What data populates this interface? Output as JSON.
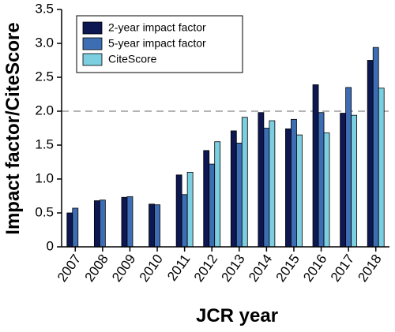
{
  "chart_data": {
    "type": "bar",
    "x_label": "JCR year",
    "y_label": "Impact factor/CiteScore",
    "categories": [
      "2007",
      "2008",
      "2009",
      "2010",
      "2011",
      "2012",
      "2013",
      "2014",
      "2015",
      "2016",
      "2017",
      "2018"
    ],
    "series": [
      {
        "name": "2-year impact factor",
        "color": "#0d1752",
        "values": [
          0.5,
          0.68,
          0.73,
          0.63,
          1.06,
          1.42,
          1.71,
          1.98,
          1.74,
          2.39,
          1.97,
          2.75
        ]
      },
      {
        "name": "5-year impact factor",
        "color": "#3d6eb4",
        "values": [
          0.57,
          0.69,
          0.74,
          0.62,
          0.77,
          1.22,
          1.53,
          1.75,
          1.88,
          1.98,
          2.35,
          2.94
        ]
      },
      {
        "name": "CiteScore",
        "color": "#7ccfe0",
        "values": [
          null,
          null,
          null,
          null,
          1.1,
          1.55,
          1.91,
          1.86,
          1.65,
          1.68,
          1.94,
          2.34
        ]
      }
    ],
    "ylim": [
      0,
      3.5
    ],
    "yticks": [
      0,
      0.5,
      {
        "value": 1,
        "label": "1.0"
      },
      1.5,
      {
        "value": 2,
        "label": "2.0"
      },
      2.5,
      {
        "value": 3,
        "label": "3.0"
      },
      3.5
    ],
    "reference_line": 2,
    "legend": "upper left"
  }
}
